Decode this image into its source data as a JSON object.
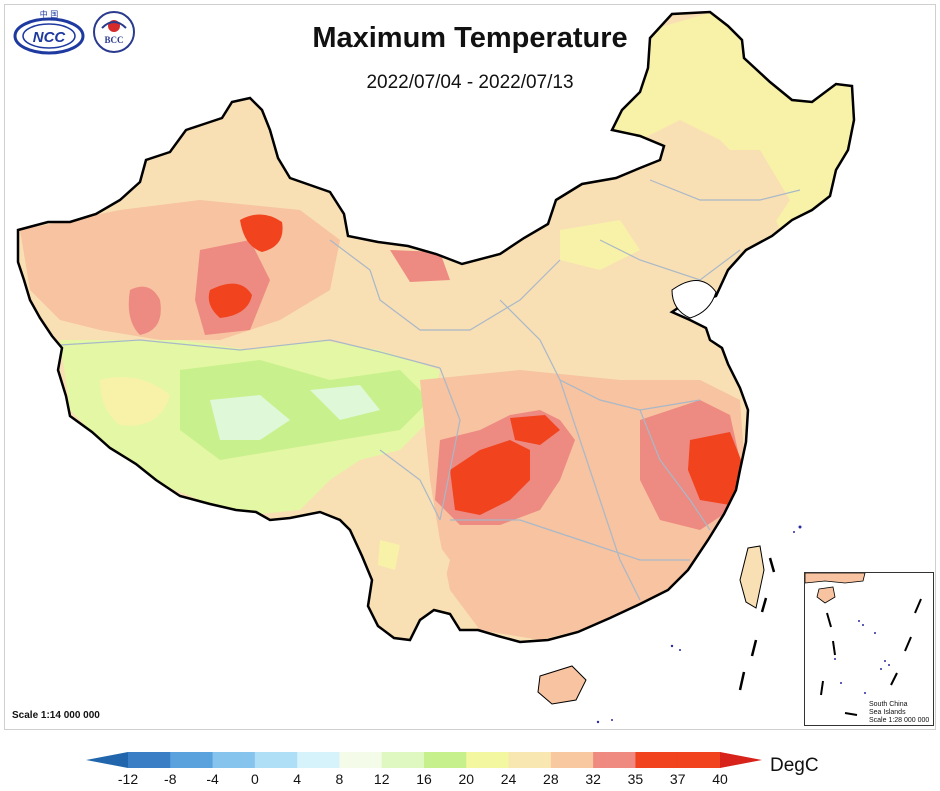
{
  "header": {
    "title": "Maximum Temperature",
    "date_range": "2022/07/04 - 2022/07/13"
  },
  "logos": {
    "ncc": {
      "name": "ncc-logo",
      "text": "NCC",
      "top_text": "中 国"
    },
    "bcc": {
      "name": "bcc-logo",
      "text": "BCC"
    }
  },
  "map": {
    "scale_label": "Scale 1:14 000 000",
    "inset": {
      "line1": "South China",
      "line2": "Sea Islands",
      "line3": "Scale 1:28 000 000"
    }
  },
  "legend": {
    "unit": "DegC",
    "ticks": [
      "-12",
      "-8",
      "-4",
      "0",
      "4",
      "8",
      "12",
      "16",
      "20",
      "24",
      "28",
      "32",
      "35",
      "37",
      "40"
    ],
    "colors": [
      "#2166ac",
      "#3a7fc6",
      "#5aa2de",
      "#86c4ee",
      "#aedff7",
      "#d6f2fb",
      "#f4fbe8",
      "#dff7c0",
      "#c6f08c",
      "#f3f7a0",
      "#f8e7b0",
      "#f8c9a0",
      "#ee8a80",
      "#f0431e",
      "#d8231a"
    ]
  },
  "colors": {
    "temp_28": "#f8f2a8",
    "temp_32": "#f8dfb4",
    "temp_35": "#f7c3a0",
    "temp_37": "#ed8a82",
    "temp_40": "#f0431e",
    "temp_24": "#e4f7a4",
    "temp_20": "#c8f08c",
    "temp_16": "#dff8d8",
    "boundary": "#000000",
    "province": "#a9b8c8"
  }
}
